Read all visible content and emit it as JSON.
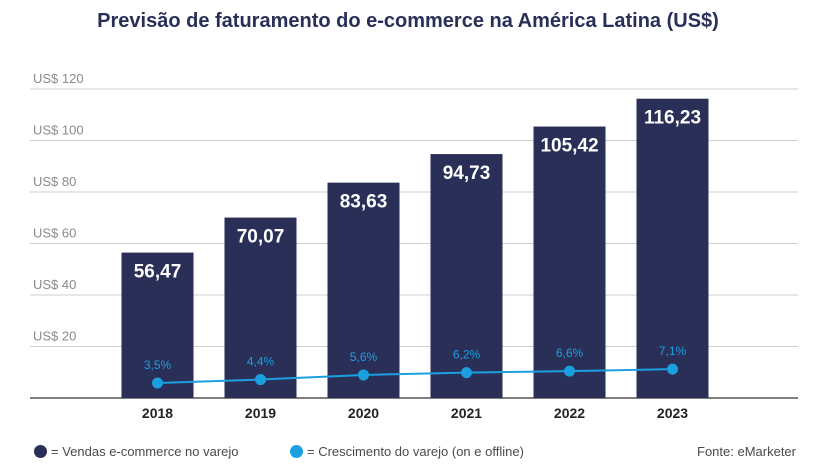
{
  "title": "Previsão de faturamento do e-commerce na América Latina (US$)",
  "colors": {
    "bar": "#2a2f57",
    "line": "#1aa0e0",
    "grid": "#cfcfcf",
    "axis_text": "#8a8a8a",
    "title": "#2a2f57"
  },
  "chart_data": {
    "type": "bar",
    "categories": [
      "2018",
      "2019",
      "2020",
      "2021",
      "2022",
      "2023"
    ],
    "series": [
      {
        "values": [
          56.47,
          70.07,
          83.63,
          94.73,
          105.42,
          116.23
        ]
      },
      {
        "values": [
          3.5,
          4.4,
          5.6,
          6.2,
          6.6,
          7.1
        ]
      }
    ],
    "bar_labels": [
      "56,47",
      "70,07",
      "83,63",
      "94,73",
      "105,42",
      "116,23"
    ],
    "line_labels": [
      "3,5%",
      "4,4%",
      "5,6%",
      "6,2%",
      "6,6%",
      "7,1%"
    ],
    "y_ticks": [
      "US$ 20",
      "US$ 40",
      "US$ 60",
      "US$ 80",
      "US$ 100",
      "US$ 120"
    ],
    "y_tick_values": [
      20,
      40,
      60,
      80,
      100,
      120
    ],
    "ylim": [
      0,
      120
    ],
    "grid": true
  },
  "legend": {
    "bars": "= Vendas e-commerce no varejo",
    "line": "= Crescimento do varejo (on e offline)"
  },
  "source": "Fonte: eMarketer"
}
